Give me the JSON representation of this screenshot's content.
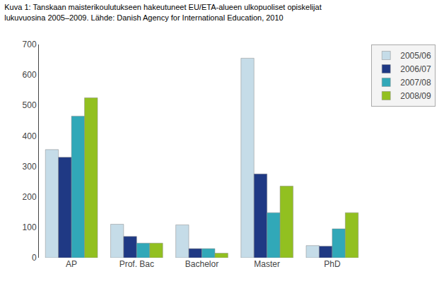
{
  "chart_data": {
    "type": "bar",
    "title": "Kuva 1: Tanskaan maisterikoulutukseen hakeutuneet EU/ETA-alueen ulkopuoliset opiskelijat",
    "subtitle": "lukuvuosina 2005–2009. Lähde: Danish Agency for International Education, 2010",
    "categories": [
      "AP",
      "Prof. Bac",
      "Bachelor",
      "Master",
      "PhD"
    ],
    "series": [
      {
        "name": "2005/06",
        "color": "#c5dce8",
        "values": [
          355,
          110,
          108,
          655,
          40
        ]
      },
      {
        "name": "2006/07",
        "color": "#1f3984",
        "values": [
          330,
          70,
          30,
          275,
          38
        ]
      },
      {
        "name": "2007/08",
        "color": "#31a8b8",
        "values": [
          465,
          48,
          30,
          148,
          95
        ]
      },
      {
        "name": "2008/09",
        "color": "#92c020",
        "values": [
          525,
          48,
          15,
          235,
          148
        ]
      }
    ],
    "ylim": [
      0,
      700
    ],
    "yticks": [
      0,
      100,
      200,
      300,
      400,
      500,
      600,
      700
    ],
    "grid": false,
    "legend": "right"
  }
}
